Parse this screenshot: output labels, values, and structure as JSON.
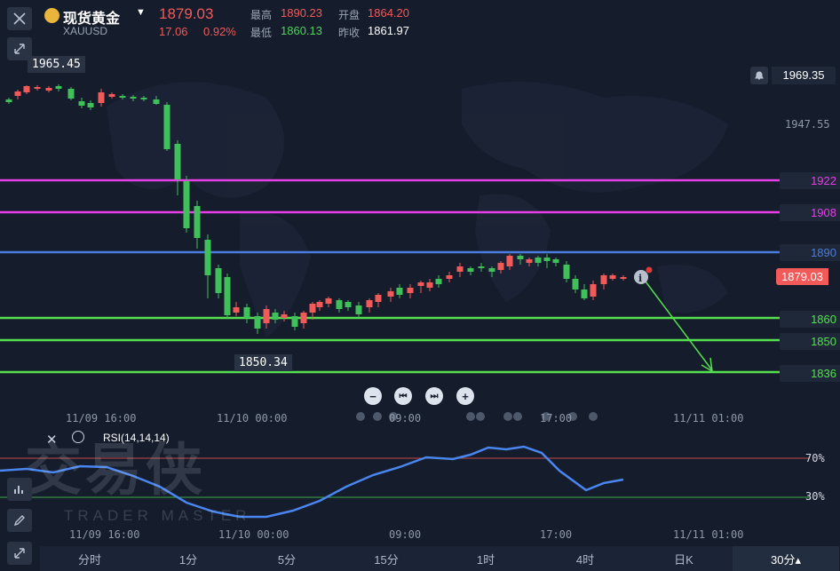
{
  "header": {
    "symbol_name": "现货黄金",
    "symbol_code": "XAUUSD",
    "last_price": "1879.03",
    "change": "17.06",
    "change_pct": "0.92%",
    "high_label": "最高",
    "high_value": "1890.23",
    "open_label": "开盘",
    "open_value": "1864.20",
    "low_label": "最低",
    "low_value": "1860.13",
    "prev_close_label": "昨收",
    "prev_close_value": "1861.97"
  },
  "chart": {
    "top_price_label": "1969.35",
    "axis_price_label": "1947.55",
    "high_marker": "1965.45",
    "low_marker": "1850.34",
    "current_price": "1879.03",
    "levels": [
      {
        "value": "1922",
        "color": "#e83ee8"
      },
      {
        "value": "1908",
        "color": "#e83ee8"
      },
      {
        "value": "1890",
        "color": "#4a7de0"
      },
      {
        "value": "1860",
        "color": "#55e04f"
      },
      {
        "value": "1850",
        "color": "#55e04f"
      },
      {
        "value": "1836",
        "color": "#55e04f"
      }
    ],
    "time_labels": [
      "11/09 16:00",
      "11/10 00:00",
      "09:00",
      "17:00",
      "11/11 01:00"
    ]
  },
  "rsi": {
    "label": "RSI(14,14,14)",
    "upper": "70%",
    "lower": "30%"
  },
  "bottom_axis": [
    "11/09 16:00",
    "11/10 00:00",
    "09:00",
    "17:00",
    "11/11 01:00"
  ],
  "watermark": {
    "cn": "交易侠",
    "en": "TRADER MASTER"
  },
  "tabs": [
    "分时",
    "1分",
    "5分",
    "15分",
    "1时",
    "4时",
    "日K",
    "30分▴"
  ]
}
